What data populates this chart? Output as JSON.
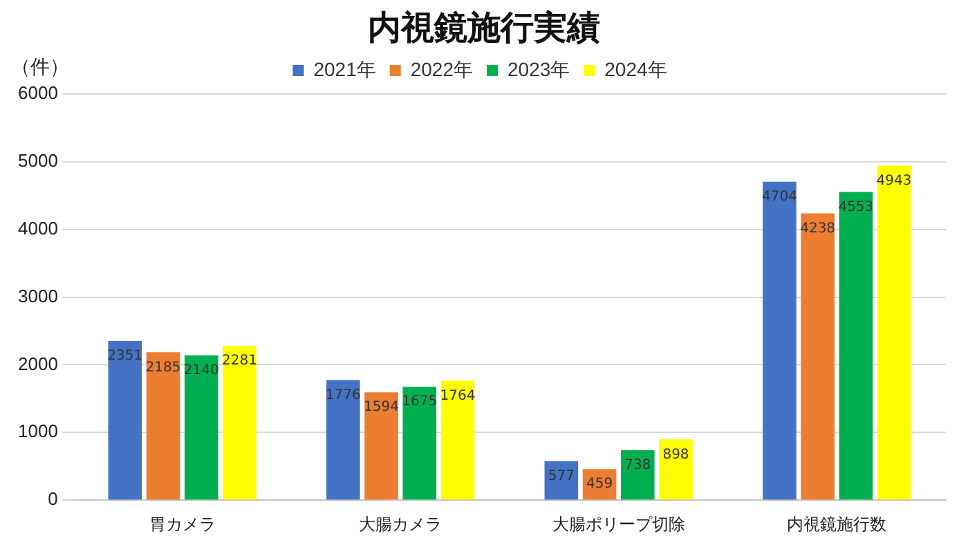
{
  "chart_data": {
    "type": "bar",
    "title": "内視鏡施行実績",
    "ylabel": "（件）",
    "categories": [
      "胃カメラ",
      "大腸カメラ",
      "大腸ポリープ切除",
      "内視鏡施行数"
    ],
    "series": [
      {
        "name": "2021年",
        "color": "#4472c4",
        "values": [
          2351,
          1776,
          577,
          4704
        ]
      },
      {
        "name": "2022年",
        "color": "#ed7d31",
        "values": [
          2185,
          1594,
          459,
          4238
        ]
      },
      {
        "name": "2023年",
        "color": "#00b050",
        "values": [
          2140,
          1675,
          738,
          4553
        ]
      },
      {
        "name": "2024年",
        "color": "#ffff00",
        "values": [
          2281,
          1764,
          898,
          4943
        ]
      }
    ],
    "ylim": [
      0,
      6000
    ],
    "yticks": [
      0,
      1000,
      2000,
      3000,
      4000,
      5000,
      6000
    ],
    "grid": "y",
    "legend": "top",
    "data_labels": true
  }
}
